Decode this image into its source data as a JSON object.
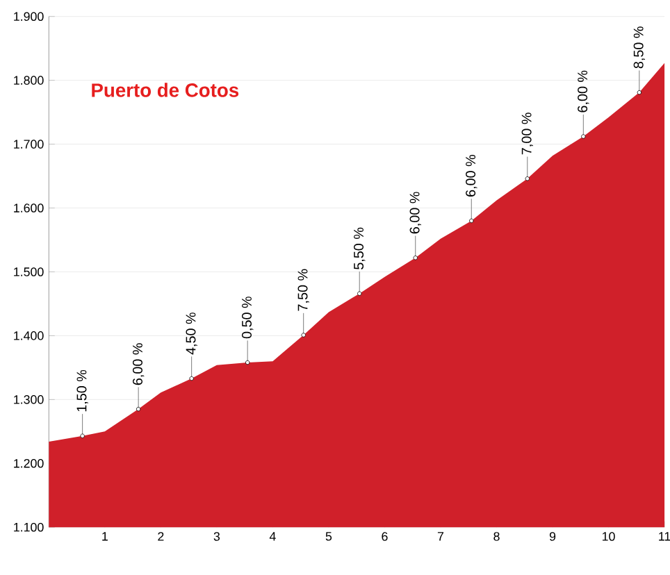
{
  "chart_data": {
    "type": "area",
    "title": "Puerto de Cotos",
    "x": [
      0,
      0.6,
      1,
      1.6,
      2,
      2.55,
      3,
      3.55,
      4,
      4.55,
      5,
      5.55,
      6,
      6.55,
      7,
      7.55,
      8,
      8.55,
      9,
      9.55,
      10,
      10.55,
      11
    ],
    "series": [
      {
        "color": "#d0202a",
        "values": [
          1234,
          1243,
          1250,
          1285,
          1311,
          1333,
          1354,
          1358,
          1360,
          1401,
          1437,
          1466,
          1492,
          1522,
          1552,
          1580,
          1612,
          1646,
          1682,
          1712,
          1742,
          1781,
          1827
        ]
      }
    ],
    "xlim": [
      0,
      11
    ],
    "xticks": [
      1,
      2,
      3,
      4,
      5,
      6,
      7,
      8,
      9,
      10,
      11
    ],
    "ylim": [
      1100,
      1900
    ],
    "yticks": [
      {
        "value": 1100,
        "label": "1.100"
      },
      {
        "value": 1200,
        "label": "1.200"
      },
      {
        "value": 1300,
        "label": "1.300"
      },
      {
        "value": 1400,
        "label": "1.400"
      },
      {
        "value": 1500,
        "label": "1.500"
      },
      {
        "value": 1600,
        "label": "1.600"
      },
      {
        "value": 1700,
        "label": "1.700"
      },
      {
        "value": 1800,
        "label": "1.800"
      },
      {
        "value": 1900,
        "label": "1.900"
      }
    ],
    "grid": "y",
    "annotations": [
      {
        "text": "1,50 %",
        "x": 0.6,
        "y": 1243
      },
      {
        "text": "6,00 %",
        "x": 1.6,
        "y": 1285
      },
      {
        "text": "4,50 %",
        "x": 2.55,
        "y": 1333
      },
      {
        "text": "0,50 %",
        "x": 3.55,
        "y": 1358
      },
      {
        "text": "7,50 %",
        "x": 4.55,
        "y": 1401
      },
      {
        "text": "5,50 %",
        "x": 5.55,
        "y": 1466
      },
      {
        "text": "6,00 %",
        "x": 6.55,
        "y": 1522
      },
      {
        "text": "6,00 %",
        "x": 7.55,
        "y": 1580
      },
      {
        "text": "7,00 %",
        "x": 8.55,
        "y": 1646
      },
      {
        "text": "6,00 %",
        "x": 9.55,
        "y": 1712
      },
      {
        "text": "8,50 %",
        "x": 10.55,
        "y": 1781
      }
    ]
  }
}
